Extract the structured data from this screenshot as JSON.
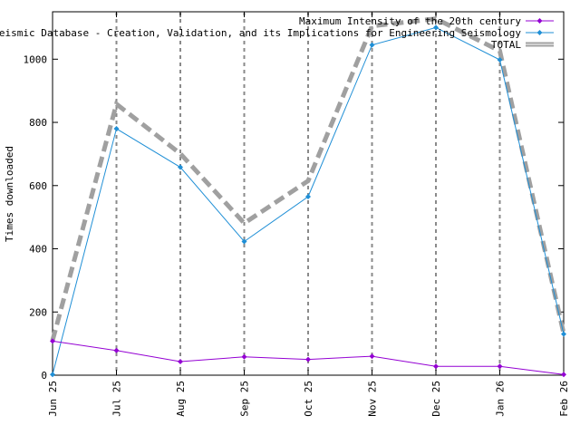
{
  "chart_data": {
    "type": "line",
    "title": "",
    "xlabel": "",
    "ylabel": "Times downloaded",
    "categories": [
      "Jun 25",
      "Jul 25",
      "Aug 25",
      "Sep 25",
      "Oct 25",
      "Nov 25",
      "Dec 25",
      "Jan 26",
      "Feb 26"
    ],
    "ylim": [
      0,
      1150
    ],
    "yticks": [
      0,
      200,
      400,
      600,
      800,
      1000
    ],
    "grid": "vertical dashed lines at each month",
    "legend_position": "top-right",
    "series": [
      {
        "name": "Maximum Intensity of the 20th century",
        "color": "#9400d3",
        "marker": "diamond",
        "values": [
          108,
          78,
          43,
          58,
          50,
          60,
          28,
          28,
          2
        ]
      },
      {
        "name": "an Macroseismic Database - Creation, Validation, and its Implications for Engineering Seismology",
        "color": "#1f8fd6",
        "marker": "diamond",
        "values": [
          2,
          780,
          658,
          423,
          565,
          1045,
          1100,
          998,
          130
        ]
      },
      {
        "name": "TOTAL",
        "color": "#a0a0a0",
        "style": "thick dashed",
        "values": [
          110,
          858,
          701,
          481,
          615,
          1105,
          1128,
          1026,
          132
        ]
      }
    ]
  }
}
